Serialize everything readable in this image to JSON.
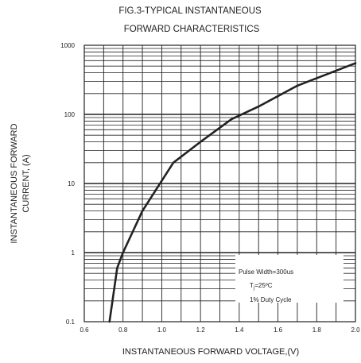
{
  "chart_data": {
    "type": "line",
    "title_lines": [
      "FIG.3-TYPICAL INSTANTANEOUS",
      "FORWARD CHARACTERISTICS"
    ],
    "xlabel": "INSTANTANEOUS FORWARD VOLTAGE,(V)",
    "ylabel_lines": [
      "INSTANTANEOUS FORWARD",
      "CURRENT, (A)"
    ],
    "x_scale": "linear",
    "y_scale": "log",
    "xlim": [
      0.6,
      2.0
    ],
    "ylim": [
      0.1,
      1000
    ],
    "x_ticks": [
      "0.6",
      "0.8",
      "1.0",
      "1.2",
      "1.4",
      "1.6",
      "1.8",
      "2.0"
    ],
    "y_ticks": [
      "0.1",
      "1",
      "10",
      "100",
      "1000"
    ],
    "grid": true,
    "series": [
      {
        "x": [
          0.73,
          0.77,
          0.8,
          0.9,
          1.06,
          1.2,
          1.36,
          1.5,
          1.7,
          2.0
        ],
        "y": [
          0.1,
          0.6,
          1.0,
          4.0,
          20,
          40,
          85,
          130,
          260,
          550
        ]
      }
    ],
    "annotations": {
      "line1": "Pulse Width=300us",
      "line2_main": "T",
      "line2_sub": "j",
      "line2_rest": "=25ºC",
      "line3": "1% Duty Cycle"
    },
    "colors": {
      "line": "#222222",
      "grid": "#222222",
      "background": "#ffffff"
    }
  }
}
